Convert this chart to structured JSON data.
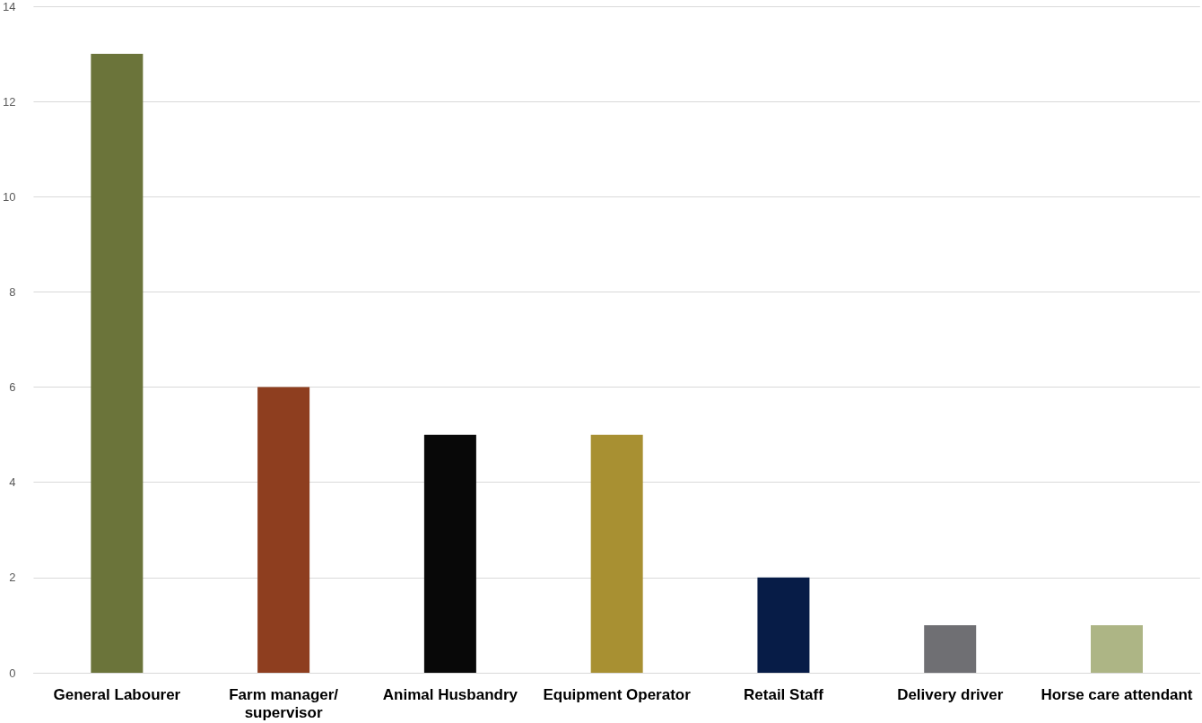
{
  "chart_data": {
    "type": "bar",
    "categories": [
      "General Labourer",
      "Farm manager/supervisor",
      "Animal Husbandry",
      "Equipment Operator",
      "Retail Staff",
      "Delivery driver",
      "Horse care attendant"
    ],
    "values": [
      13,
      6,
      5,
      5,
      2,
      1,
      1
    ],
    "colors": [
      "#6b743a",
      "#8e3e1f",
      "#080808",
      "#a89032",
      "#071c47",
      "#6f6f73",
      "#adb585"
    ],
    "ylim": [
      0,
      14
    ],
    "yticks": [
      0,
      2,
      4,
      6,
      8,
      10,
      12,
      14
    ],
    "grid": "y"
  }
}
